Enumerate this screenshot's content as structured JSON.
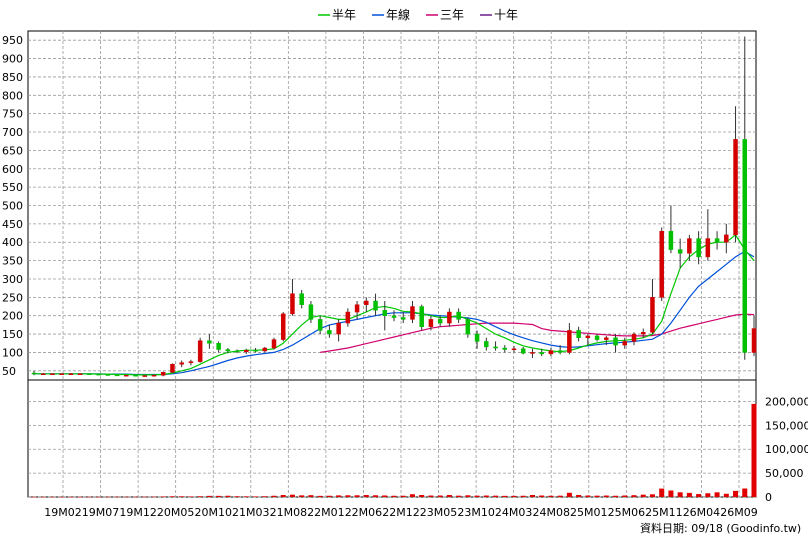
{
  "chart_data": {
    "type": "candlestick",
    "legend": [
      {
        "name": "半年",
        "color": "#00c800"
      },
      {
        "name": "年線",
        "color": "#0050d8"
      },
      {
        "name": "三年",
        "color": "#d0006e"
      },
      {
        "name": "十年",
        "color": "#6a1f8a"
      }
    ],
    "price_axis": {
      "ticks": [
        50,
        100,
        150,
        200,
        250,
        300,
        350,
        400,
        450,
        500,
        550,
        600,
        650,
        700,
        750,
        800,
        850,
        900,
        950
      ],
      "range": [
        25,
        975
      ]
    },
    "volume_axis": {
      "ticks": [
        "0",
        "50,000",
        "100,000",
        "150,000",
        "200,000"
      ],
      "values": [
        0,
        50000,
        100000,
        150000,
        200000
      ],
      "range": [
        0,
        245000
      ]
    },
    "x_labels": [
      "19M02",
      "19M07",
      "19M12",
      "20M05",
      "20M10",
      "21M03",
      "21M08",
      "22M01",
      "22M06",
      "22M12",
      "23M05",
      "23M10",
      "24M03",
      "24M08",
      "25M01",
      "25M06",
      "25M11",
      "26M04",
      "26M09"
    ],
    "footer": "資料日期: 09/18  (Goodinfo.tw)",
    "up_color": "#d40000",
    "down_color": "#00c000",
    "volume_color": "#e00000",
    "candles": [
      [
        44,
        50,
        38,
        42
      ],
      [
        42,
        44,
        41,
        42
      ],
      [
        42,
        43,
        41,
        42
      ],
      [
        42,
        43,
        41,
        42
      ],
      [
        42,
        44,
        41,
        42
      ],
      [
        42,
        43,
        41,
        42
      ],
      [
        42,
        43,
        41,
        41
      ],
      [
        41,
        42,
        39,
        40
      ],
      [
        40,
        41,
        38,
        39
      ],
      [
        39,
        40,
        37,
        38
      ],
      [
        38,
        39,
        37,
        38
      ],
      [
        38,
        39,
        36,
        37
      ],
      [
        37,
        38,
        36,
        37
      ],
      [
        37,
        40,
        35,
        38
      ],
      [
        38,
        48,
        35,
        46
      ],
      [
        46,
        70,
        44,
        68
      ],
      [
        68,
        78,
        60,
        72
      ],
      [
        72,
        80,
        65,
        75
      ],
      [
        75,
        140,
        72,
        132
      ],
      [
        132,
        150,
        110,
        125
      ],
      [
        125,
        130,
        100,
        108
      ],
      [
        108,
        112,
        98,
        104
      ],
      [
        104,
        108,
        98,
        102
      ],
      [
        102,
        110,
        96,
        106
      ],
      [
        106,
        112,
        100,
        104
      ],
      [
        104,
        115,
        100,
        112
      ],
      [
        112,
        140,
        108,
        135
      ],
      [
        135,
        210,
        130,
        205
      ],
      [
        205,
        300,
        200,
        260
      ],
      [
        260,
        270,
        220,
        230
      ],
      [
        230,
        240,
        180,
        190
      ],
      [
        190,
        200,
        150,
        160
      ],
      [
        160,
        175,
        140,
        150
      ],
      [
        150,
        190,
        130,
        180
      ],
      [
        180,
        220,
        170,
        210
      ],
      [
        210,
        240,
        190,
        230
      ],
      [
        230,
        250,
        210,
        240
      ],
      [
        240,
        260,
        200,
        215
      ],
      [
        215,
        240,
        160,
        200
      ],
      [
        200,
        215,
        185,
        195
      ],
      [
        195,
        210,
        180,
        190
      ],
      [
        190,
        240,
        180,
        225
      ],
      [
        225,
        230,
        160,
        170
      ],
      [
        170,
        200,
        160,
        190
      ],
      [
        190,
        200,
        170,
        180
      ],
      [
        180,
        220,
        170,
        210
      ],
      [
        210,
        220,
        180,
        190
      ],
      [
        190,
        195,
        140,
        150
      ],
      [
        150,
        160,
        110,
        130
      ],
      [
        130,
        140,
        105,
        115
      ],
      [
        115,
        130,
        105,
        112
      ],
      [
        112,
        120,
        100,
        108
      ],
      [
        108,
        118,
        100,
        110
      ],
      [
        110,
        115,
        95,
        98
      ],
      [
        98,
        110,
        85,
        100
      ],
      [
        100,
        110,
        90,
        96
      ],
      [
        96,
        112,
        90,
        105
      ],
      [
        105,
        120,
        95,
        100
      ],
      [
        100,
        180,
        95,
        160
      ],
      [
        160,
        170,
        130,
        140
      ],
      [
        140,
        150,
        120,
        145
      ],
      [
        145,
        150,
        130,
        135
      ],
      [
        135,
        145,
        120,
        140
      ],
      [
        140,
        150,
        100,
        120
      ],
      [
        120,
        140,
        110,
        130
      ],
      [
        130,
        155,
        120,
        150
      ],
      [
        150,
        165,
        140,
        155
      ],
      [
        155,
        300,
        150,
        250
      ],
      [
        250,
        440,
        240,
        430
      ],
      [
        430,
        500,
        370,
        380
      ],
      [
        380,
        410,
        330,
        370
      ],
      [
        370,
        420,
        350,
        410
      ],
      [
        410,
        430,
        340,
        360
      ],
      [
        360,
        490,
        350,
        410
      ],
      [
        410,
        430,
        380,
        400
      ],
      [
        400,
        450,
        370,
        420
      ],
      [
        420,
        770,
        400,
        680
      ],
      [
        680,
        960,
        80,
        100
      ],
      [
        100,
        200,
        90,
        165
      ]
    ],
    "volume": [
      [
        0.3,
        0.3,
        0.2,
        0.2,
        0.2,
        0.2,
        0.3,
        0.3,
        0.4,
        0.5,
        0.4,
        0.5,
        0.6,
        0.8,
        1.2,
        1.5,
        1.5,
        1.2,
        1.6,
        2.4,
        2.4,
        2.6,
        1.6,
        1.4,
        1.2,
        1.6,
        2.6,
        4.2,
        4.8,
        3.4,
        3.8,
        2.4,
        2.6,
        3.4,
        3.6,
        3.6,
        4.1,
        3.6,
        3.2,
        2.6,
        2.6,
        5.8,
        4.2,
        3.1,
        3.1,
        4.2,
        2.8,
        3.6,
        2.8,
        3.1,
        2.8,
        2.4,
        2.4,
        2.6,
        4.2,
        3.1,
        2.6,
        2.8,
        8.8,
        4.2,
        3.1,
        2.8,
        3.1,
        2.6,
        3.1,
        3.8,
        4.9,
        5.6,
        17.6,
        13.6,
        9.8,
        8.6,
        6.1,
        7.8,
        9.8,
        6.8,
        12.8,
        17.8,
        195
      ]
    ],
    "ma_half": [
      42,
      42,
      42,
      42,
      42,
      42,
      42,
      41,
      41,
      40,
      40,
      39,
      39,
      39,
      40,
      44,
      50,
      56,
      68,
      80,
      92,
      100,
      104,
      106,
      106,
      107,
      110,
      125,
      150,
      175,
      195,
      200,
      195,
      190,
      190,
      200,
      210,
      222,
      225,
      220,
      212,
      210,
      205,
      200,
      195,
      195,
      200,
      190,
      180,
      165,
      150,
      140,
      128,
      118,
      112,
      108,
      104,
      102,
      105,
      112,
      120,
      126,
      130,
      132,
      133,
      136,
      140,
      150,
      185,
      260,
      330,
      360,
      380,
      395,
      400,
      400,
      420,
      380,
      350
    ],
    "ma_year": [
      42,
      42,
      42,
      42,
      42,
      42,
      42,
      42,
      41,
      41,
      41,
      40,
      40,
      40,
      40,
      42,
      45,
      50,
      56,
      62,
      70,
      78,
      85,
      90,
      94,
      97,
      100,
      108,
      120,
      135,
      150,
      165,
      175,
      180,
      185,
      190,
      195,
      200,
      205,
      208,
      208,
      208,
      205,
      202,
      200,
      198,
      196,
      194,
      190,
      182,
      170,
      158,
      148,
      140,
      132,
      126,
      120,
      116,
      114,
      115,
      118,
      121,
      124,
      126,
      128,
      130,
      133,
      136,
      150,
      180,
      215,
      250,
      280,
      300,
      320,
      340,
      360,
      375,
      360
    ],
    "ma_three": [
      null,
      null,
      null,
      null,
      null,
      null,
      null,
      null,
      null,
      null,
      null,
      null,
      null,
      null,
      null,
      null,
      null,
      null,
      null,
      null,
      null,
      null,
      null,
      null,
      null,
      null,
      null,
      null,
      null,
      null,
      null,
      100,
      104,
      108,
      112,
      118,
      124,
      130,
      136,
      142,
      148,
      154,
      160,
      166,
      170,
      172,
      174,
      176,
      178,
      180,
      180,
      180,
      180,
      178,
      176,
      165,
      160,
      158,
      156,
      154,
      152,
      150,
      148,
      146,
      145,
      145,
      145,
      146,
      150,
      158,
      166,
      172,
      178,
      184,
      190,
      196,
      202,
      204,
      203
    ]
  }
}
